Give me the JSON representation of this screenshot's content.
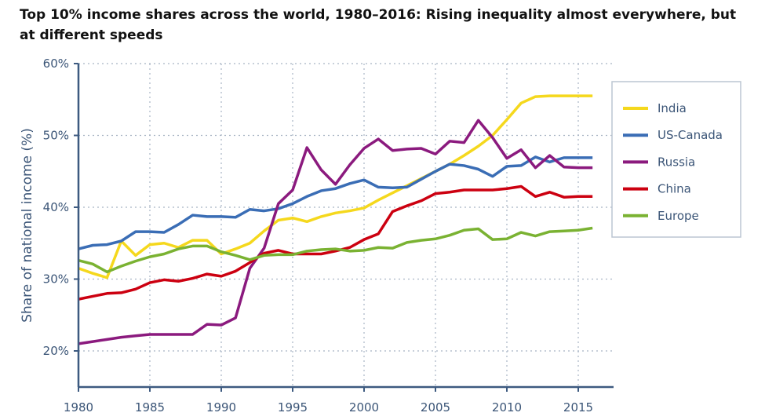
{
  "chart_data": {
    "type": "line",
    "title": "Top 10% income shares across the world, 1980–2016: Rising inequality almost everywhere, but at different speeds",
    "ylabel": "Share of national income (%)",
    "xlabel": "",
    "xlim": [
      1980,
      2016
    ],
    "ylim": [
      15,
      60
    ],
    "xticks": [
      "1980",
      "1985",
      "1990",
      "1995",
      "2000",
      "2005",
      "2010",
      "2015"
    ],
    "yticks": [
      "20%",
      "30%",
      "40%",
      "50%",
      "60%"
    ],
    "grid": true,
    "legend_position": "right",
    "x": [
      1980,
      1981,
      1982,
      1983,
      1984,
      1985,
      1986,
      1987,
      1988,
      1989,
      1990,
      1991,
      1992,
      1993,
      1994,
      1995,
      1996,
      1997,
      1998,
      1999,
      2000,
      2001,
      2002,
      2003,
      2004,
      2005,
      2006,
      2007,
      2008,
      2009,
      2010,
      2011,
      2012,
      2013,
      2014,
      2015,
      2016
    ],
    "series": [
      {
        "name": "India",
        "color": "#f5d81d",
        "values": [
          31.5,
          30.8,
          30.2,
          35.3,
          33.3,
          34.8,
          35.0,
          34.4,
          35.4,
          35.4,
          33.5,
          34.2,
          35.0,
          36.7,
          38.2,
          38.5,
          38.0,
          38.7,
          39.2,
          39.5,
          39.9,
          41.0,
          42.0,
          43.0,
          44.0,
          45.0,
          46.0,
          47.2,
          48.5,
          50.0,
          52.2,
          54.5,
          55.4,
          55.5,
          55.5,
          55.5,
          55.5
        ]
      },
      {
        "name": "US-Canada",
        "color": "#3a6db5",
        "values": [
          34.2,
          34.7,
          34.8,
          35.3,
          36.6,
          36.6,
          36.5,
          37.6,
          38.9,
          38.7,
          38.7,
          38.6,
          39.7,
          39.5,
          39.8,
          40.5,
          41.5,
          42.3,
          42.6,
          43.3,
          43.8,
          42.8,
          42.7,
          42.8,
          43.9,
          45.0,
          46.0,
          45.8,
          45.3,
          44.3,
          45.7,
          45.8,
          47.0,
          46.3,
          46.9,
          46.9,
          46.9
        ]
      },
      {
        "name": "Russia",
        "color": "#8b1a7e",
        "values": [
          21.0,
          21.3,
          21.6,
          21.9,
          22.1,
          22.3,
          22.3,
          22.3,
          22.3,
          23.7,
          23.6,
          24.6,
          31.5,
          34.3,
          40.5,
          42.4,
          48.3,
          45.2,
          43.2,
          45.9,
          48.2,
          49.5,
          47.9,
          48.1,
          48.2,
          47.4,
          49.2,
          49.0,
          52.1,
          49.7,
          46.8,
          48.0,
          45.5,
          47.2,
          45.6,
          45.5,
          45.5
        ]
      },
      {
        "name": "China",
        "color": "#cc0010",
        "values": [
          27.2,
          27.6,
          28.0,
          28.1,
          28.6,
          29.5,
          29.9,
          29.7,
          30.1,
          30.7,
          30.4,
          31.1,
          32.3,
          33.6,
          34.0,
          33.5,
          33.5,
          33.5,
          33.9,
          34.4,
          35.5,
          36.3,
          39.4,
          40.2,
          40.9,
          41.9,
          42.1,
          42.4,
          42.4,
          42.4,
          42.6,
          42.9,
          41.5,
          42.1,
          41.4,
          41.5,
          41.5
        ]
      },
      {
        "name": "Europe",
        "color": "#7ab232",
        "values": [
          32.6,
          32.1,
          31.0,
          31.8,
          32.5,
          33.1,
          33.5,
          34.2,
          34.6,
          34.6,
          33.8,
          33.3,
          32.7,
          33.3,
          33.4,
          33.4,
          33.9,
          34.1,
          34.2,
          33.9,
          34.0,
          34.4,
          34.3,
          35.1,
          35.4,
          35.6,
          36.1,
          36.8,
          37.0,
          35.5,
          35.6,
          36.5,
          36.0,
          36.6,
          36.7,
          36.8,
          37.1
        ]
      }
    ]
  }
}
